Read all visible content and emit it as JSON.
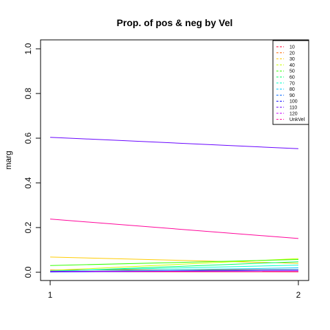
{
  "chart_data": {
    "type": "line",
    "title": "Prop. of pos & neg by Vel",
    "xlabel": "",
    "ylabel": "marg",
    "x": [
      1,
      2
    ],
    "xlim": [
      1,
      2
    ],
    "ylim": [
      0,
      1
    ],
    "x_ticks": [
      1,
      2
    ],
    "y_ticks": [
      0.0,
      0.2,
      0.4,
      0.6,
      0.8,
      1.0
    ],
    "x_tick_labels": [
      "1",
      "2"
    ],
    "y_tick_labels": [
      "0.0",
      "0.2",
      "0.4",
      "0.6",
      "0.8",
      "1.0"
    ],
    "grid": false,
    "legend_position": "top-right",
    "series": [
      {
        "name": "10",
        "color": "#FF0033",
        "values": [
          0.003,
          0.002
        ]
      },
      {
        "name": "20",
        "color": "#FF6600",
        "values": [
          0.01,
          0.012
        ]
      },
      {
        "name": "30",
        "color": "#FFCC00",
        "values": [
          0.068,
          0.04
        ]
      },
      {
        "name": "40",
        "color": "#CCFF00",
        "values": [
          0.008,
          0.061
        ]
      },
      {
        "name": "50",
        "color": "#33FF00",
        "values": [
          0.03,
          0.057
        ]
      },
      {
        "name": "60",
        "color": "#00FF66",
        "values": [
          0.004,
          0.047
        ]
      },
      {
        "name": "70",
        "color": "#00FFCC",
        "values": [
          0.006,
          0.032
        ]
      },
      {
        "name": "80",
        "color": "#00CCFF",
        "values": [
          0.002,
          0.02
        ]
      },
      {
        "name": "90",
        "color": "#0066FF",
        "values": [
          0.001,
          0.012
        ]
      },
      {
        "name": "100",
        "color": "#0000FF",
        "values": [
          0.002,
          0.007
        ]
      },
      {
        "name": "110",
        "color": "#6600FF",
        "values": [
          0.604,
          0.553
        ]
      },
      {
        "name": "120",
        "color": "#CC00FF",
        "values": [
          0.004,
          0.006
        ]
      },
      {
        "name": "UnkVel",
        "color": "#FF0099",
        "values": [
          0.238,
          0.151
        ]
      }
    ]
  }
}
